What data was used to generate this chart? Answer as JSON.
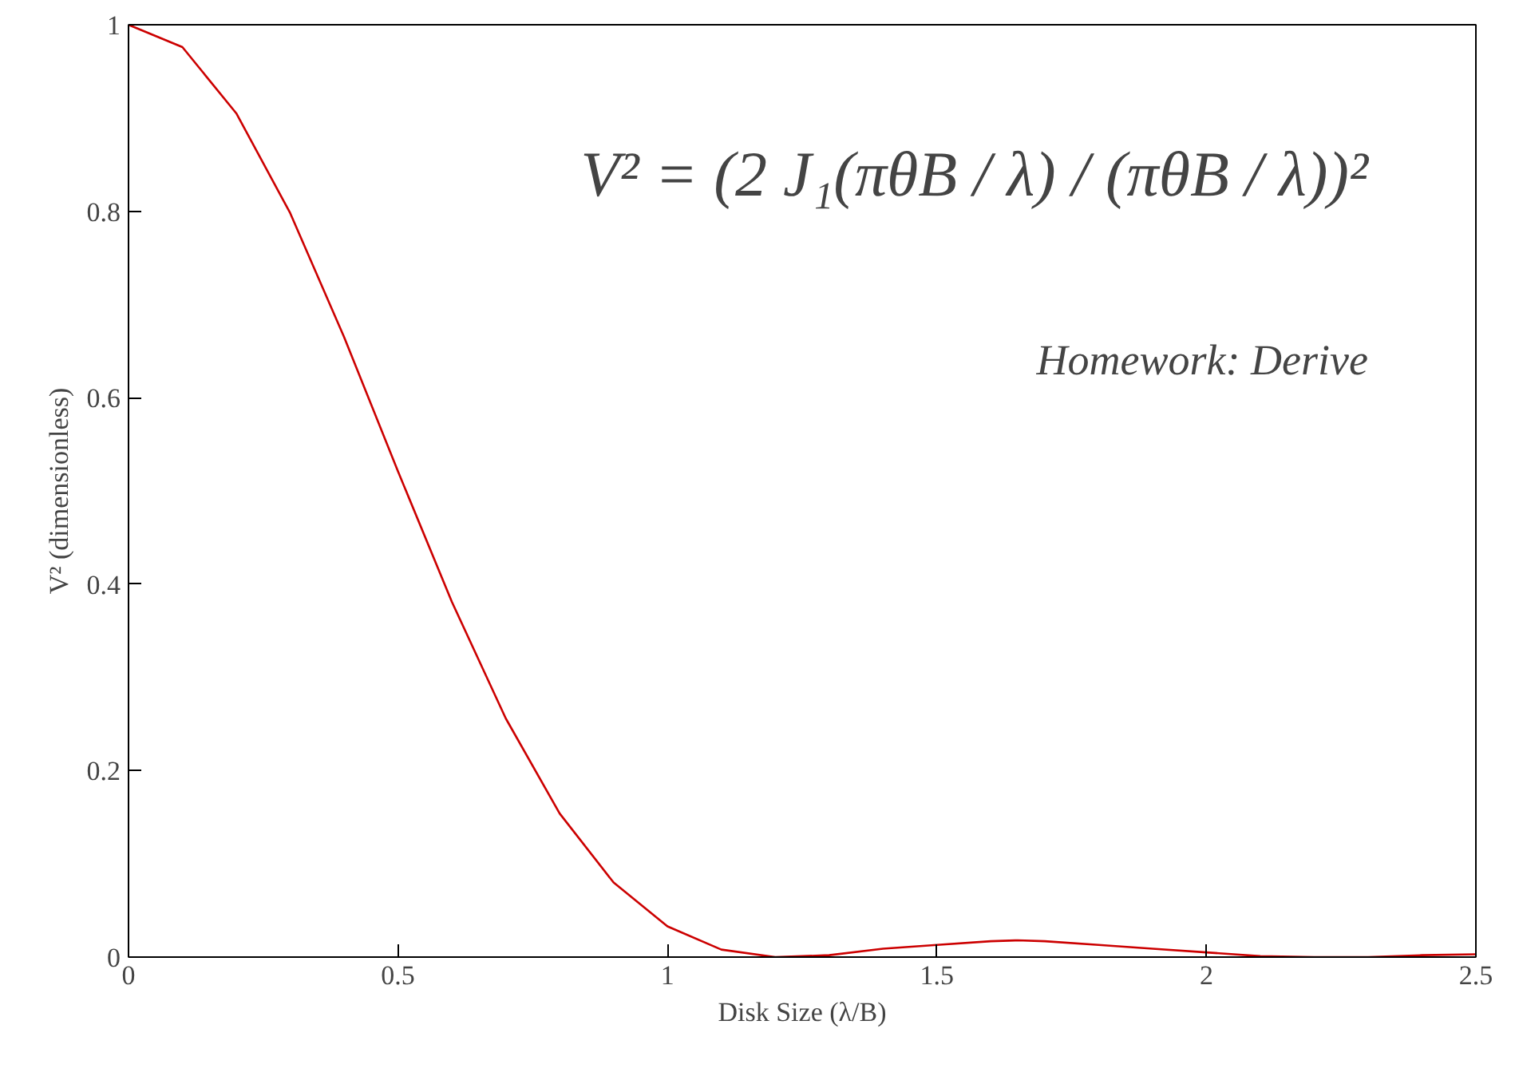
{
  "chart_data": {
    "type": "line",
    "xlabel": "Disk Size (λ/B)",
    "ylabel": "V² (dimensionless)",
    "x": [
      0,
      0.1,
      0.2,
      0.3,
      0.4,
      0.5,
      0.6,
      0.7,
      0.8,
      0.9,
      1.0,
      1.1,
      1.2,
      1.3,
      1.4,
      1.5,
      1.6,
      1.65,
      1.7,
      1.8,
      1.9,
      2.0,
      2.1,
      2.2,
      2.3,
      2.4,
      2.5
    ],
    "series": [
      {
        "color": "#cc0000",
        "values": [
          1,
          0.976,
          0.905,
          0.798,
          0.665,
          0.521,
          0.381,
          0.256,
          0.154,
          0.08,
          0.033,
          0.008,
          0,
          0.002,
          0.009,
          0.013,
          0.017,
          0.018,
          0.017,
          0.013,
          0.009,
          0.005,
          0.001,
          0,
          0,
          0.002,
          0.003
        ]
      }
    ],
    "xlim": [
      0,
      2.5
    ],
    "ylim": [
      0,
      1
    ],
    "xticks": [
      0,
      0.5,
      1,
      1.5,
      2,
      2.5
    ],
    "yticks": [
      0,
      0.2,
      0.4,
      0.6,
      0.8,
      1
    ],
    "annotations": [
      "V² = (2 J₁(πθB / λ) / (πθB / λ))²",
      "Homework: Derive"
    ],
    "grid": false,
    "marker": "none",
    "line_style": "solid"
  }
}
